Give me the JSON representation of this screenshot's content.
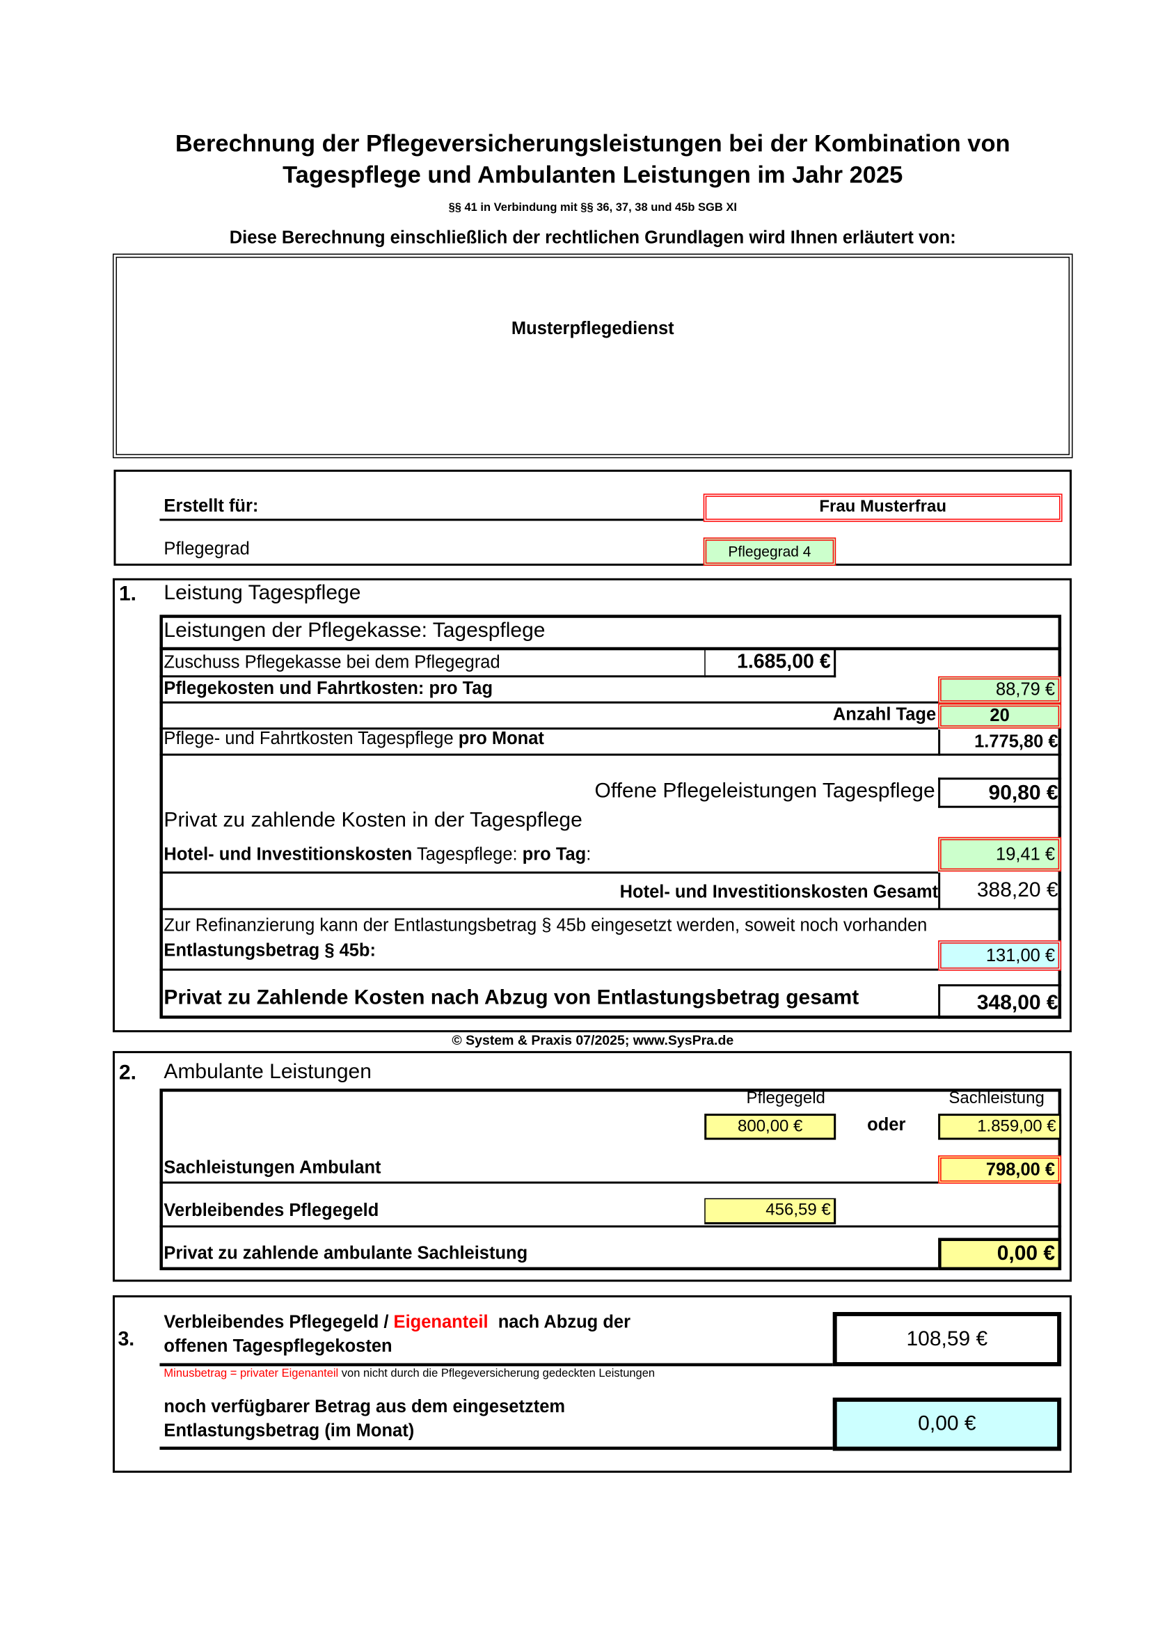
{
  "header": {
    "title_line1": "Berechnung der Pflegeversicherungsleistungen bei  der Kombination von",
    "title_line2": "Tagespflege und Ambulanten Leistungen im Jahr 2025",
    "legal_basis": "§§ 41 in Verbindung mit §§ 36, 37, 38 und 45b SGB XI",
    "explained_by": "Diese Berechnung einschließlich der rechtlichen Grundlagen wird Ihnen erläutert von:",
    "provider": "Musterpflegedienst"
  },
  "client": {
    "created_for_label": "Erstellt für:",
    "created_for_value": "Frau Musterfrau",
    "care_level_label": "Pflegegrad",
    "care_level_value": "Pflegegrad 4"
  },
  "section1": {
    "number": "1.",
    "title": "Leistung Tagespflege",
    "subtitle": "Leistungen der Pflegekasse: Tagespflege",
    "subsidy_label": "Zuschuss Pflegekasse bei dem Pflegegrad",
    "subsidy_value": "1.685,00 €",
    "daily_cost_label": "Pflegekosten und Fahrtkosten: pro Tag",
    "daily_cost_value": "88,79 €",
    "days_label": "Anzahl Tage",
    "days_value": "20",
    "monthly_label_a": "Pflege- und Fahrtkosten Tagespflege ",
    "monthly_label_b": "pro Monat",
    "monthly_value": "1.775,80 €",
    "open_label": "Offene Pflegeleistungen Tagespflege",
    "open_value": "90,80 €",
    "private_title": "Privat zu zahlende Kosten in der Tagespflege",
    "hotel_label_a": "Hotel- und Investitionskosten",
    "hotel_label_b": " Tagespflege: ",
    "hotel_label_c": "pro Tag",
    "hotel_label_d": ":",
    "hotel_value": "19,41 €",
    "hotel_total_label": "Hotel- und Investitionskosten Gesamt",
    "hotel_total_value": "388,20 €",
    "refinance_note": "Zur Refinanzierung kann der Entlastungsbetrag § 45b eingesetzt werden, soweit noch vorhanden",
    "relief_label": "Entlastungsbetrag § 45b:",
    "relief_value": "131,00 €",
    "private_total_label": "Privat zu Zahlende Kosten nach Abzug von Entlastungsbetrag gesamt",
    "private_total_value": "348,00 €"
  },
  "copyright": "© System & Praxis 07/2025; www.SysPra.de",
  "section2": {
    "number": "2.",
    "title": "Ambulante Leistungen",
    "care_allowance_header": "Pflegegeld",
    "in_kind_header": "Sachleistung",
    "care_allowance_value": "800,00 €",
    "or_label": "oder",
    "in_kind_value": "1.859,00 €",
    "in_kind_used_label": "Sachleistungen Ambulant",
    "in_kind_used_value": "798,00 €",
    "remaining_allowance_label": "Verbleibendes Pflegegeld",
    "remaining_allowance_value": "456,59 €",
    "private_in_kind_label": "Privat zu zahlende ambulante Sachleistung",
    "private_in_kind_value": "0,00 €"
  },
  "section3": {
    "number": "3.",
    "line1_a": "Verbleibendes Pflegegeld / ",
    "line1_b": "Eigenanteil",
    "line1_c": "  nach Abzug der",
    "line2": "offenen Tagespflegekosten",
    "result_value": "108,59 €",
    "note_red": "Minusbetrag = privater Eigenanteil",
    "note_black": " von nicht durch die Pflegeversicherung gedeckten Leistungen",
    "available_line1": "noch verfügbarer Betrag aus dem eingesetztem",
    "available_line2": "Entlastungsbetrag (im Monat)",
    "available_value": "0,00 €"
  },
  "colors": {
    "input_green": "#ccffcc",
    "input_yellow": "#ffff99",
    "result_cyan": "#ccffff",
    "highlight_red": "#ff0000"
  }
}
